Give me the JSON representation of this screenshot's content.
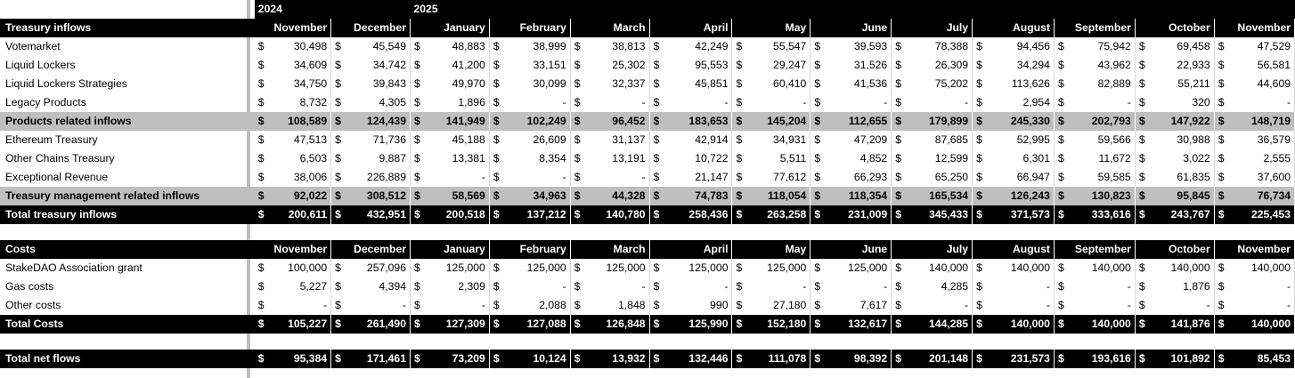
{
  "years": [
    {
      "label": "2024",
      "span": 2
    },
    {
      "label": "2025",
      "span": 11
    }
  ],
  "months": [
    "November",
    "December",
    "January",
    "February",
    "March",
    "April",
    "May",
    "June",
    "July",
    "August",
    "September",
    "October",
    "November"
  ],
  "currency": "$",
  "inflows": {
    "header": "Treasury inflows",
    "rows": [
      {
        "label": "Votemarket",
        "style": "white",
        "values": [
          "30,498",
          "45,549",
          "48,883",
          "38,999",
          "38,813",
          "42,249",
          "55,547",
          "39,593",
          "78,388",
          "94,456",
          "75,942",
          "69,458",
          "47,529"
        ]
      },
      {
        "label": "Liquid Lockers",
        "style": "white",
        "values": [
          "34,609",
          "34,742",
          "41,200",
          "33,151",
          "25,302",
          "95,553",
          "29,247",
          "31,526",
          "26,309",
          "34,294",
          "43,962",
          "22,933",
          "56,581"
        ]
      },
      {
        "label": "Liquid Lockers Strategies",
        "style": "white",
        "values": [
          "34,750",
          "39,843",
          "49,970",
          "30,099",
          "32,337",
          "45,851",
          "60,410",
          "41,536",
          "75,202",
          "113,626",
          "82,889",
          "55,211",
          "44,609"
        ]
      },
      {
        "label": "Legacy Products",
        "style": "white",
        "values": [
          "8,732",
          "4,305",
          "1,896",
          "-",
          "-",
          "-",
          "-",
          "-",
          "-",
          "2,954",
          "-",
          "320",
          "-"
        ]
      },
      {
        "label": "Products related inflows",
        "style": "grey",
        "values": [
          "108,589",
          "124,439",
          "141,949",
          "102,249",
          "96,452",
          "183,653",
          "145,204",
          "112,655",
          "179,899",
          "245,330",
          "202,793",
          "147,922",
          "148,719"
        ]
      },
      {
        "label": "Ethereum Treasury",
        "style": "white",
        "values": [
          "47,513",
          "71,736",
          "45,188",
          "26,609",
          "31,137",
          "42,914",
          "34,931",
          "47,209",
          "87,685",
          "52,995",
          "59,566",
          "30,988",
          "36,579"
        ]
      },
      {
        "label": "Other Chains Treasury",
        "style": "white",
        "values": [
          "6,503",
          "9,887",
          "13,381",
          "8,354",
          "13,191",
          "10,722",
          "5,511",
          "4,852",
          "12,599",
          "6,301",
          "11,672",
          "3,022",
          "2,555"
        ]
      },
      {
        "label": "Exceptional Revenue",
        "style": "white",
        "values": [
          "38,006",
          "226,889",
          "-",
          "-",
          "-",
          "21,147",
          "77,612",
          "66,293",
          "65,250",
          "66,947",
          "59,585",
          "61,835",
          "37,600"
        ]
      },
      {
        "label": "Treasury management related inflows",
        "style": "grey",
        "values": [
          "92,022",
          "308,512",
          "58,569",
          "34,963",
          "44,328",
          "74,783",
          "118,054",
          "118,354",
          "165,534",
          "126,243",
          "130,823",
          "95,845",
          "76,734"
        ]
      },
      {
        "label": "Total treasury inflows",
        "style": "black",
        "values": [
          "200,611",
          "432,951",
          "200,518",
          "137,212",
          "140,780",
          "258,436",
          "263,258",
          "231,009",
          "345,433",
          "371,573",
          "333,616",
          "243,767",
          "225,453"
        ]
      }
    ]
  },
  "costs": {
    "header": "Costs",
    "rows": [
      {
        "label": "StakeDAO Association grant",
        "style": "white",
        "values": [
          "100,000",
          "257,096",
          "125,000",
          "125,000",
          "125,000",
          "125,000",
          "125,000",
          "125,000",
          "140,000",
          "140,000",
          "140,000",
          "140,000",
          "140,000"
        ]
      },
      {
        "label": "Gas costs",
        "style": "white",
        "values": [
          "5,227",
          "4,394",
          "2,309",
          "-",
          "-",
          "-",
          "-",
          "-",
          "4,285",
          "-",
          "-",
          "1,876",
          "-"
        ]
      },
      {
        "label": "Other costs",
        "style": "white",
        "values": [
          "-",
          "-",
          "-",
          "2,088",
          "1,848",
          "990",
          "27,180",
          "7,617",
          "-",
          "-",
          "-",
          "-",
          "-"
        ]
      },
      {
        "label": "Total Costs",
        "style": "black",
        "values": [
          "105,227",
          "261,490",
          "127,309",
          "127,088",
          "126,848",
          "125,990",
          "152,180",
          "132,617",
          "144,285",
          "140,000",
          "140,000",
          "141,876",
          "140,000"
        ]
      }
    ]
  },
  "net": {
    "label": "Total net flows",
    "values": [
      "95,384",
      "171,461",
      "73,209",
      "10,124",
      "13,932",
      "132,446",
      "111,078",
      "98,392",
      "201,148",
      "231,573",
      "193,616",
      "101,892",
      "85,453"
    ]
  }
}
